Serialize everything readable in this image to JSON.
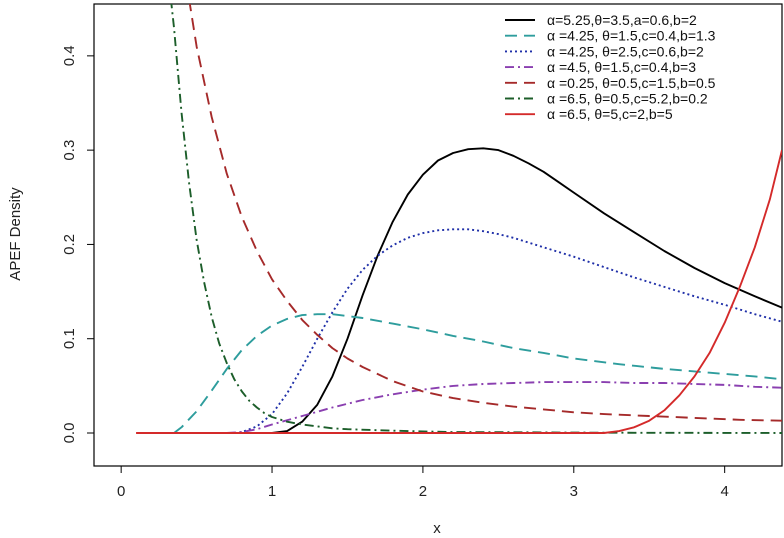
{
  "chart_data": {
    "type": "line",
    "xlabel": "x",
    "ylabel": "APEF Density",
    "xlim": [
      -0.18,
      4.38
    ],
    "ylim": [
      -0.035,
      0.455
    ],
    "x_ticks": [
      0,
      1,
      2,
      3,
      4
    ],
    "x_tick_labels": [
      "0",
      "1",
      "2",
      "3",
      "4"
    ],
    "y_ticks": [
      0.0,
      0.1,
      0.2,
      0.3,
      0.4
    ],
    "y_tick_labels": [
      "0.0",
      "0.1",
      "0.2",
      "0.3",
      "0.4"
    ],
    "grid": false,
    "legend_position": "top-right",
    "series": [
      {
        "name": "α=5.25,θ=3.5,a=0.6,b=2",
        "color": "#000000",
        "dash": "solid",
        "x": [
          1.0,
          1.1,
          1.2,
          1.3,
          1.4,
          1.5,
          1.6,
          1.7,
          1.8,
          1.9,
          2.0,
          2.1,
          2.2,
          2.3,
          2.4,
          2.5,
          2.6,
          2.7,
          2.8,
          2.9,
          3.0,
          3.2,
          3.4,
          3.6,
          3.8,
          4.0,
          4.2,
          4.38
        ],
        "y": [
          0.0,
          0.002,
          0.012,
          0.03,
          0.06,
          0.1,
          0.146,
          0.188,
          0.224,
          0.253,
          0.274,
          0.289,
          0.297,
          0.301,
          0.302,
          0.3,
          0.294,
          0.286,
          0.277,
          0.266,
          0.255,
          0.233,
          0.213,
          0.193,
          0.175,
          0.159,
          0.145,
          0.133
        ]
      },
      {
        "name": "α =4.25, θ=1.5,c=0.4,b=1.3",
        "color": "#2e9d9d",
        "dash": "long-dash",
        "x": [
          0.35,
          0.4,
          0.5,
          0.6,
          0.7,
          0.8,
          0.9,
          1.0,
          1.1,
          1.2,
          1.3,
          1.4,
          1.5,
          1.6,
          1.8,
          2.0,
          2.2,
          2.4,
          2.6,
          2.8,
          3.0,
          3.3,
          3.6,
          3.9,
          4.2,
          4.38
        ],
        "y": [
          0.0,
          0.006,
          0.023,
          0.045,
          0.068,
          0.088,
          0.103,
          0.114,
          0.121,
          0.125,
          0.126,
          0.126,
          0.124,
          0.122,
          0.116,
          0.11,
          0.103,
          0.097,
          0.09,
          0.085,
          0.079,
          0.073,
          0.068,
          0.064,
          0.06,
          0.057
        ]
      },
      {
        "name": "α =4.25, θ=2.5,c=0.6,b=2",
        "color": "#1f2fa8",
        "dash": "dotted",
        "x": [
          0.75,
          0.8,
          0.9,
          1.0,
          1.1,
          1.2,
          1.3,
          1.4,
          1.5,
          1.6,
          1.7,
          1.8,
          1.9,
          2.0,
          2.1,
          2.2,
          2.3,
          2.4,
          2.5,
          2.6,
          2.8,
          3.0,
          3.2,
          3.4,
          3.6,
          3.8,
          4.0,
          4.2,
          4.38
        ],
        "y": [
          0.0,
          0.001,
          0.007,
          0.02,
          0.042,
          0.07,
          0.1,
          0.128,
          0.153,
          0.173,
          0.188,
          0.199,
          0.207,
          0.212,
          0.215,
          0.216,
          0.216,
          0.214,
          0.211,
          0.207,
          0.197,
          0.187,
          0.176,
          0.165,
          0.155,
          0.145,
          0.136,
          0.126,
          0.118
        ]
      },
      {
        "name": "α =4.5, θ=1.5,c=0.4,b=3",
        "color": "#8a3fb0",
        "dash": "dash-dot",
        "x": [
          0.7,
          0.8,
          0.9,
          1.0,
          1.2,
          1.4,
          1.6,
          1.8,
          2.0,
          2.2,
          2.4,
          2.6,
          2.8,
          3.0,
          3.2,
          3.4,
          3.6,
          3.8,
          4.0,
          4.2,
          4.38
        ],
        "y": [
          0.0,
          0.001,
          0.004,
          0.009,
          0.018,
          0.027,
          0.035,
          0.041,
          0.046,
          0.05,
          0.052,
          0.053,
          0.054,
          0.054,
          0.054,
          0.053,
          0.053,
          0.052,
          0.051,
          0.049,
          0.048
        ]
      },
      {
        "name": "α =0.25, θ=0.5,c=1.5,b=0.5",
        "color": "#a52a2a",
        "dash": "long-dash",
        "x": [
          0.45,
          0.5,
          0.6,
          0.7,
          0.8,
          0.9,
          1.0,
          1.1,
          1.2,
          1.3,
          1.4,
          1.5,
          1.6,
          1.8,
          2.0,
          2.2,
          2.4,
          2.6,
          2.8,
          3.0,
          3.2,
          3.5,
          3.8,
          4.1,
          4.38
        ],
        "y": [
          0.46,
          0.41,
          0.335,
          0.275,
          0.229,
          0.193,
          0.163,
          0.14,
          0.12,
          0.104,
          0.09,
          0.079,
          0.07,
          0.055,
          0.044,
          0.037,
          0.032,
          0.028,
          0.025,
          0.022,
          0.02,
          0.018,
          0.016,
          0.014,
          0.013
        ]
      },
      {
        "name": "α =6.5, θ=0.5,c=5.2,b=0.2",
        "color": "#1c5e2a",
        "dash": "dash-dot",
        "x": [
          0.33,
          0.35,
          0.4,
          0.45,
          0.5,
          0.55,
          0.6,
          0.65,
          0.7,
          0.75,
          0.8,
          0.85,
          0.9,
          0.95,
          1.0,
          1.1,
          1.2,
          1.3,
          1.4,
          1.5,
          1.7,
          1.9,
          2.2,
          2.5,
          3.0,
          3.5,
          4.0,
          4.38
        ],
        "y": [
          0.46,
          0.43,
          0.34,
          0.265,
          0.205,
          0.16,
          0.123,
          0.095,
          0.074,
          0.057,
          0.044,
          0.034,
          0.027,
          0.021,
          0.017,
          0.012,
          0.009,
          0.007,
          0.005,
          0.004,
          0.003,
          0.002,
          0.001,
          0.0008,
          0.0004,
          0.0002,
          0.0001,
          0.0
        ]
      },
      {
        "name": "α =6.5, θ=5,c=2,b=5",
        "color": "#d42a2a",
        "dash": "solid",
        "x": [
          0.1,
          0.5,
          1.0,
          1.5,
          2.0,
          2.5,
          3.0,
          3.2,
          3.3,
          3.4,
          3.5,
          3.6,
          3.7,
          3.8,
          3.9,
          4.0,
          4.1,
          4.2,
          4.3,
          4.38
        ],
        "y": [
          0.0,
          0.0,
          0.0,
          0.0,
          0.0,
          0.0,
          0.0,
          0.0,
          0.002,
          0.006,
          0.013,
          0.024,
          0.04,
          0.06,
          0.085,
          0.117,
          0.155,
          0.197,
          0.248,
          0.3
        ]
      },
      {
        "name": "",
        "color": "#d42a2a",
        "dash": "solid",
        "x": [
          0.1,
          0.5,
          1.0
        ],
        "y": [
          0.0,
          0.0,
          0.0
        ]
      }
    ]
  }
}
